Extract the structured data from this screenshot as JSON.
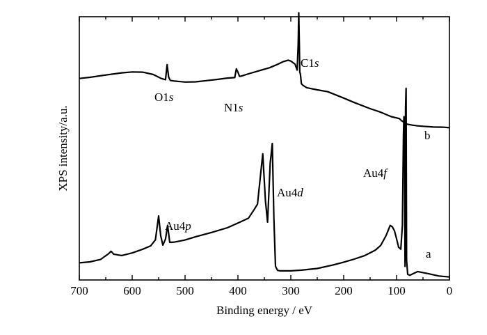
{
  "chart_data": {
    "type": "line",
    "xlabel": "Binding energy / eV",
    "ylabel": "XPS intensity/a.u.",
    "xlim": [
      700,
      0
    ],
    "x_reversed": true,
    "ylim": [
      0,
      100
    ],
    "y_ticks_labeled": false,
    "x_ticks": [
      700,
      600,
      500,
      400,
      300,
      200,
      100,
      0
    ],
    "grid": false,
    "series": [
      {
        "name": "a",
        "x": [
          700,
          680,
          660,
          645,
          640,
          635,
          620,
          600,
          580,
          565,
          556,
          550,
          546,
          542,
          537,
          533,
          529,
          520,
          500,
          480,
          450,
          420,
          400,
          380,
          370,
          363,
          357,
          353,
          348,
          344,
          339,
          335,
          332,
          329,
          325,
          320,
          300,
          280,
          250,
          220,
          200,
          180,
          160,
          140,
          130,
          120,
          112,
          108,
          104,
          100,
          96,
          92,
          89,
          87,
          86,
          85,
          84,
          83,
          82,
          81,
          79,
          75,
          60,
          40,
          20,
          5,
          0
        ],
        "y": [
          6.1,
          6.5,
          7.5,
          9.9,
          11.0,
          9.8,
          9.2,
          10.3,
          11.9,
          13.3,
          15.9,
          26.0,
          17.6,
          13.6,
          16.2,
          22.0,
          14.8,
          14.9,
          15.8,
          17.2,
          19.0,
          21.0,
          23.0,
          25.1,
          28.5,
          31.0,
          44.0,
          52.4,
          32.6,
          23.4,
          48.5,
          56.8,
          24.8,
          4.6,
          2.9,
          2.7,
          2.7,
          3.0,
          3.7,
          5.2,
          6.4,
          7.7,
          9.2,
          11.5,
          13.5,
          17.6,
          22.0,
          21.4,
          19.7,
          16.3,
          12.7,
          11.9,
          22.0,
          60.4,
          68.2,
          55.0,
          4.6,
          72.0,
          80.2,
          7.4,
          1.2,
          0.8,
          2.4,
          1.5,
          0.5,
          0.2,
          0.1
        ]
      },
      {
        "name": "b",
        "x": [
          700,
          680,
          650,
          620,
          600,
          580,
          560,
          545,
          537,
          534,
          531,
          528,
          520,
          500,
          480,
          460,
          440,
          420,
          406,
          403,
          400,
          397,
          394,
          380,
          360,
          340,
          325,
          315,
          305,
          300,
          292,
          288,
          286,
          285,
          284,
          283,
          282,
          280,
          277,
          270,
          250,
          230,
          200,
          180,
          150,
          130,
          110,
          95,
          90,
          80,
          70,
          60,
          50,
          30,
          10,
          0
        ],
        "y": [
          84.4,
          84.9,
          85.9,
          86.8,
          87.2,
          87.1,
          86.1,
          84.4,
          83.9,
          90.3,
          85.0,
          83.6,
          83.3,
          82.9,
          83.0,
          83.5,
          84.0,
          84.6,
          84.8,
          88.5,
          87.1,
          85.3,
          85.4,
          86.4,
          87.7,
          89.0,
          90.4,
          91.5,
          92.2,
          91.8,
          90.5,
          88.0,
          98.8,
          112.3,
          100.0,
          87.0,
          86.5,
          82.2,
          81.5,
          80.5,
          79.6,
          78.8,
          76.1,
          74.2,
          71.6,
          70.1,
          68.2,
          67.4,
          66.4,
          65.0,
          64.6,
          64.3,
          64.1,
          63.8,
          63.7,
          63.5
        ]
      }
    ],
    "curve_labels": [
      {
        "text": "a",
        "series": "a"
      },
      {
        "text": "b",
        "series": "b"
      }
    ],
    "annotations": [
      {
        "prefix": "O1",
        "suffix": "s",
        "x": 531
      },
      {
        "prefix": "N1",
        "suffix": "s",
        "x": 400
      },
      {
        "prefix": "C1",
        "suffix": "s",
        "x": 284
      },
      {
        "prefix": "Au4",
        "suffix": "p",
        "x": 546
      },
      {
        "prefix": "Au4",
        "suffix": "d",
        "x": 335
      },
      {
        "prefix": "Au4",
        "suffix": "f",
        "x": 84
      }
    ]
  }
}
